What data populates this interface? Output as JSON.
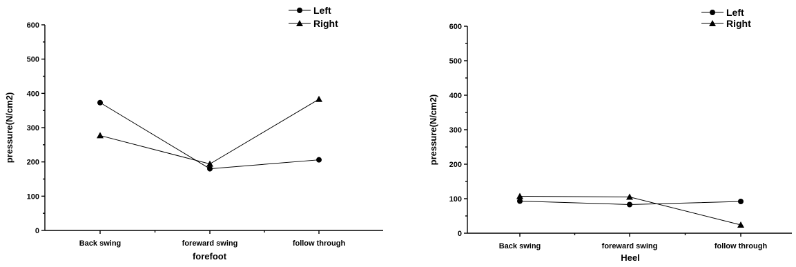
{
  "chart_data": [
    {
      "type": "line",
      "categories": [
        "Back swing",
        "foreward swing",
        "follow through"
      ],
      "xlabel": "forefoot",
      "ylabel": "pressure(N/cm2)",
      "ylim": [
        0,
        600
      ],
      "yticks": [
        0,
        100,
        200,
        300,
        400,
        500,
        600
      ],
      "grid": false,
      "legend": "top-right",
      "series": [
        {
          "name": "Left",
          "marker": "circle",
          "values": [
            373,
            180,
            206
          ]
        },
        {
          "name": "Right",
          "marker": "triangle",
          "values": [
            277,
            194,
            383
          ]
        }
      ]
    },
    {
      "type": "line",
      "categories": [
        "Back swing",
        "foreward swing",
        "follow through"
      ],
      "xlabel": "Heel",
      "ylabel": "pressure(N/cm2)",
      "ylim": [
        0,
        600
      ],
      "yticks": [
        0,
        100,
        200,
        300,
        400,
        500,
        600
      ],
      "grid": false,
      "legend": "top-right",
      "series": [
        {
          "name": "Left",
          "marker": "circle",
          "values": [
            93,
            83,
            92
          ]
        },
        {
          "name": "Right",
          "marker": "triangle",
          "values": [
            107,
            105,
            24
          ]
        }
      ]
    }
  ]
}
